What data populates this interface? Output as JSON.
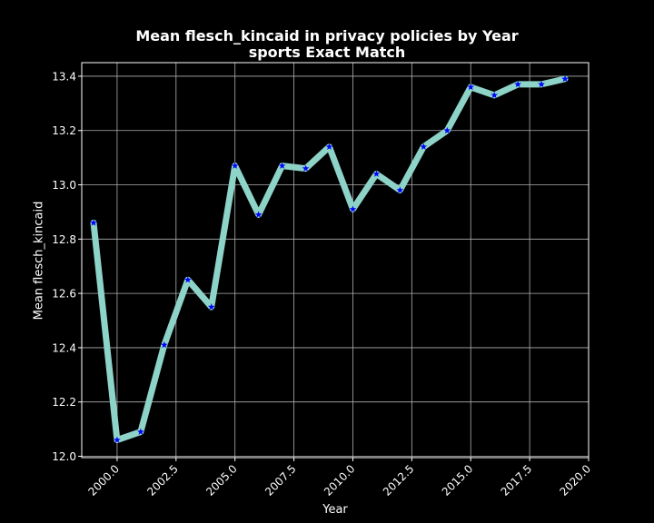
{
  "title_lines": [
    "Mean flesch_kincaid in privacy policies by Year",
    "sports Exact Match"
  ],
  "chart_data": {
    "type": "line",
    "title": "Mean flesch_kincaid in privacy policies by Year\nsports Exact Match",
    "xlabel": "Year",
    "ylabel": "Mean flesch_kincaid",
    "xlim": [
      1998.5,
      2020.0
    ],
    "ylim": [
      11.995,
      13.45
    ],
    "grid": true,
    "xticks": [
      2000.0,
      2002.5,
      2005.0,
      2007.5,
      2010.0,
      2012.5,
      2015.0,
      2017.5,
      2020.0
    ],
    "xtick_labels": [
      "2000.0",
      "2002.5",
      "2005.0",
      "2007.5",
      "2010.0",
      "2012.5",
      "2015.0",
      "2017.5",
      "2020.0"
    ],
    "yticks": [
      12.0,
      12.2,
      12.4,
      12.6,
      12.8,
      13.0,
      13.2,
      13.4
    ],
    "ytick_labels": [
      "12.0",
      "12.2",
      "12.4",
      "12.6",
      "12.8",
      "13.0",
      "13.2",
      "13.4"
    ],
    "x": [
      1999,
      2000,
      2001,
      2002,
      2003,
      2004,
      2005,
      2006,
      2007,
      2008,
      2009,
      2010,
      2011,
      2012,
      2013,
      2014,
      2015,
      2016,
      2017,
      2018,
      2019
    ],
    "series": [
      {
        "values": [
          12.86,
          12.06,
          12.09,
          12.41,
          12.65,
          12.55,
          13.07,
          12.89,
          13.07,
          13.06,
          13.14,
          12.91,
          13.04,
          12.98,
          13.14,
          13.2,
          13.36,
          13.33,
          13.37,
          13.37,
          13.39
        ],
        "line_color": "#8dd3c7",
        "marker_color": "#0000ff",
        "marker": "star"
      }
    ],
    "colors": {
      "background": "#000000",
      "grid": "#b0b0b0",
      "text": "#ffffff"
    }
  }
}
